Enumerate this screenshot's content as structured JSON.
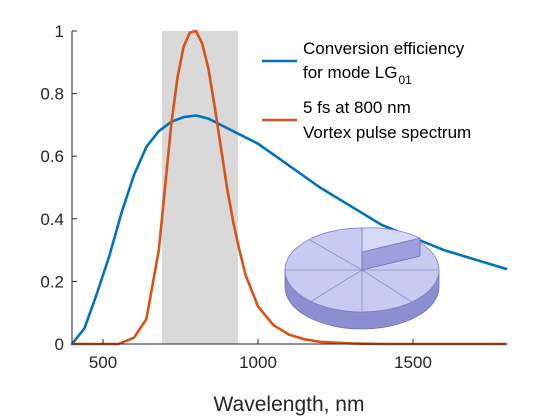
{
  "chart_data": {
    "type": "line",
    "xlabel": "Wavelength, nm",
    "ylabel": "",
    "title": "",
    "xlim": [
      400,
      1800
    ],
    "ylim": [
      0,
      1
    ],
    "xticks": [
      500,
      1000,
      1500
    ],
    "yticks": [
      0,
      0.2,
      0.4,
      0.6,
      0.8,
      1
    ],
    "ytick_labels": [
      "0",
      "0.2",
      "0.4",
      "0.6",
      "0.8",
      "1"
    ],
    "shaded_band": {
      "x0": 690,
      "x1": 935,
      "color": "#d9d9d9"
    },
    "grid": false,
    "legend_position": "top-right",
    "series": [
      {
        "name_main": "Conversion efficiency",
        "name_line2": "for mode LG",
        "name_subscript": "01",
        "color": "#0072BD",
        "x": [
          400,
          440,
          480,
          520,
          560,
          600,
          640,
          680,
          720,
          760,
          800,
          840,
          880,
          920,
          960,
          1000,
          1100,
          1200,
          1300,
          1400,
          1500,
          1600,
          1700,
          1800
        ],
        "y": [
          0.0,
          0.05,
          0.16,
          0.28,
          0.42,
          0.54,
          0.63,
          0.68,
          0.71,
          0.725,
          0.73,
          0.72,
          0.7,
          0.68,
          0.66,
          0.64,
          0.57,
          0.5,
          0.44,
          0.38,
          0.34,
          0.3,
          0.27,
          0.24
        ]
      },
      {
        "name_main": "5 fs at 800 nm",
        "name_line2": "Vortex pulse spectrum",
        "color": "#D95319",
        "x": [
          400,
          550,
          600,
          640,
          680,
          700,
          720,
          740,
          760,
          780,
          800,
          820,
          840,
          860,
          880,
          900,
          920,
          940,
          960,
          1000,
          1050,
          1100,
          1150,
          1200,
          1300,
          1400,
          1800
        ],
        "y": [
          0.0,
          0.0,
          0.02,
          0.08,
          0.3,
          0.5,
          0.7,
          0.85,
          0.95,
          0.995,
          1.0,
          0.96,
          0.88,
          0.76,
          0.63,
          0.5,
          0.39,
          0.3,
          0.22,
          0.12,
          0.06,
          0.03,
          0.015,
          0.007,
          0.002,
          0.0,
          0.0
        ]
      }
    ]
  }
}
